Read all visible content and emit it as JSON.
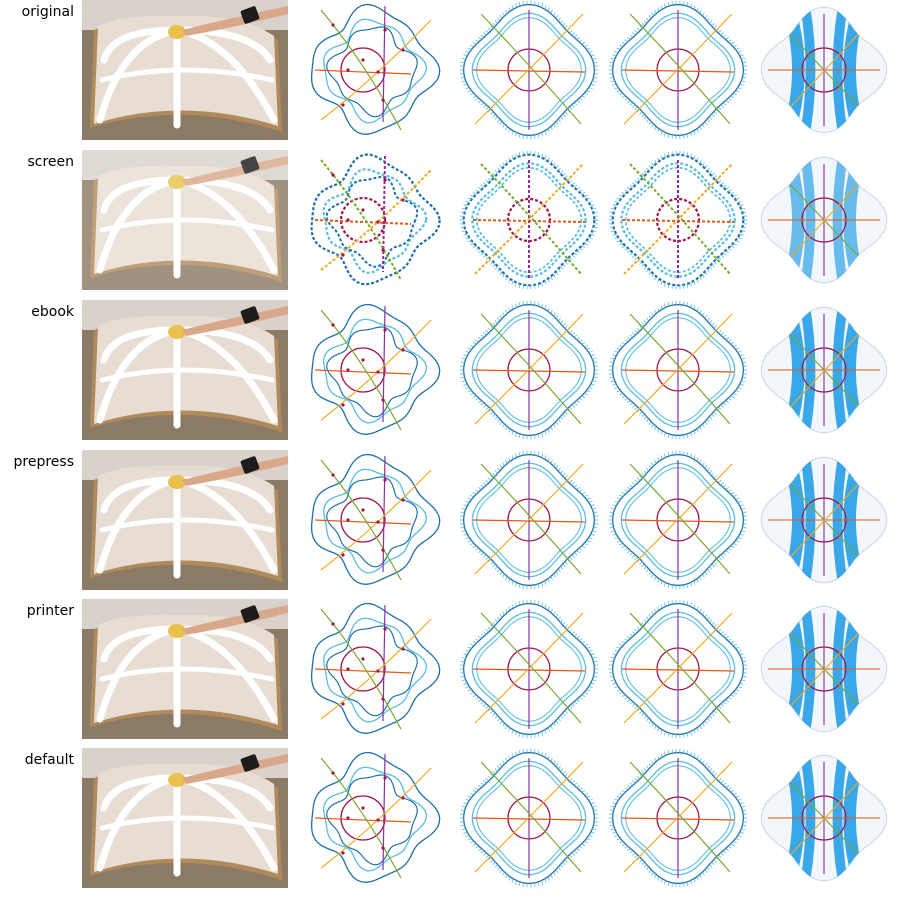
{
  "rows": [
    {
      "label": "original",
      "photo": "photo-of-bent-sheet-with-white-strips",
      "degraded": false,
      "render_shade": "normal"
    },
    {
      "label": "screen",
      "photo": "photo-of-bent-sheet-with-white-strips",
      "degraded": true,
      "render_shade": "blurred"
    },
    {
      "label": "ebook",
      "photo": "photo-of-bent-sheet-with-white-strips",
      "degraded": false,
      "render_shade": "normal"
    },
    {
      "label": "prepress",
      "photo": "photo-of-bent-sheet-with-white-strips",
      "degraded": false,
      "render_shade": "normal"
    },
    {
      "label": "printer",
      "photo": "photo-of-bent-sheet-with-white-strips",
      "degraded": false,
      "render_shade": "normal"
    },
    {
      "label": "default",
      "photo": "photo-of-bent-sheet-with-white-strips",
      "degraded": false,
      "render_shade": "normal"
    }
  ],
  "colors": {
    "outer_curve": "#1f6fa8",
    "inner_curve": "#5bbde0",
    "circle": "#a3134e",
    "horizontal": "#e2581a",
    "vertical": "#8a2ca0",
    "diag_green": "#78a82a",
    "diag_yellow": "#f0a81e",
    "render_blue": "#3aa8e8",
    "photo_bg": "#8b7a66",
    "sheet": "#e8ddd3",
    "strip": "#ffffff"
  }
}
